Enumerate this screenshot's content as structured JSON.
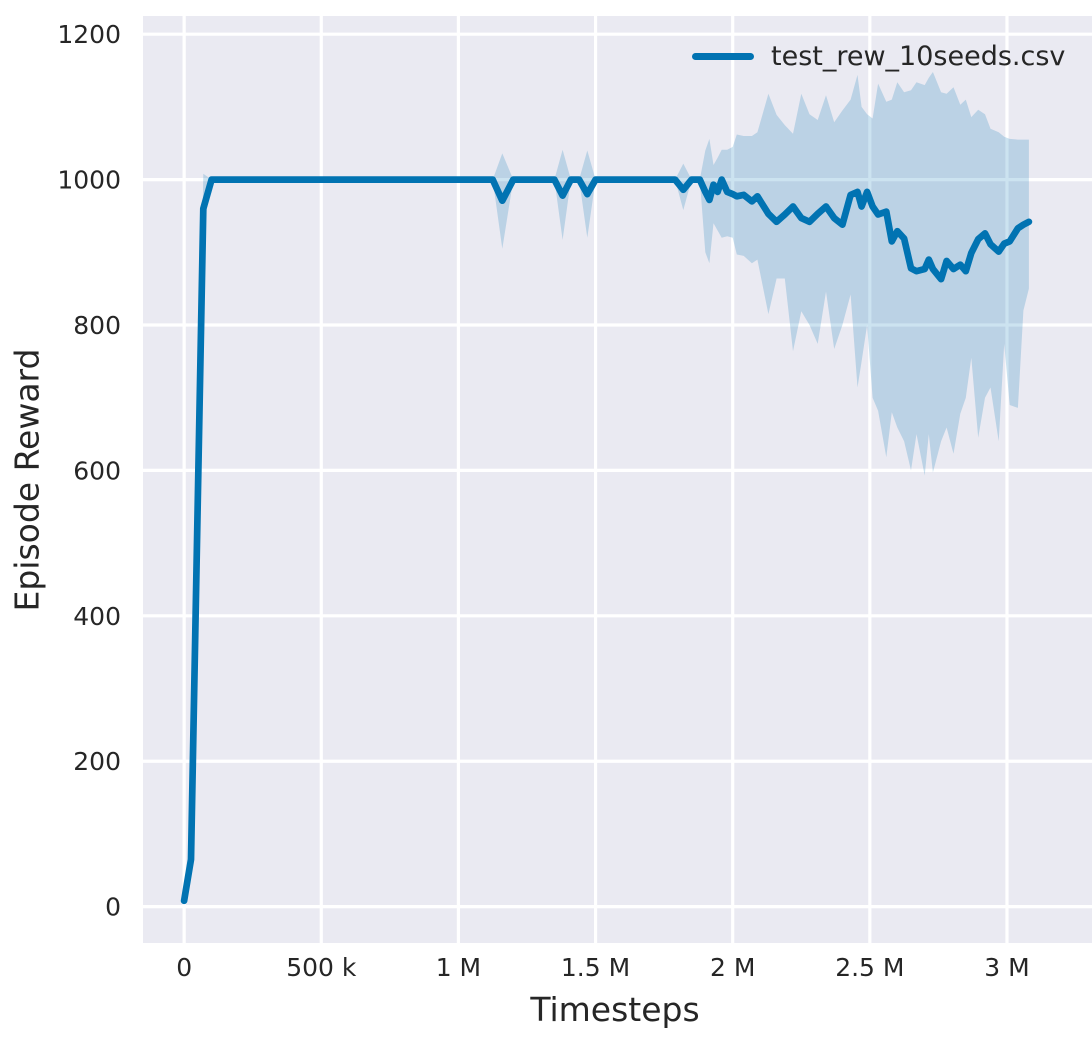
{
  "chart_data": {
    "type": "line",
    "title": "",
    "xlabel": "Timesteps",
    "ylabel": "Episode Reward",
    "legend_position": "upper right",
    "grid": true,
    "legend": [
      {
        "label": "test_rew_10seeds.csv",
        "color": "#0173b2"
      }
    ],
    "x_ticks": {
      "values": [
        0,
        500000,
        1000000,
        1500000,
        2000000,
        2500000,
        3000000
      ],
      "labels": [
        "0",
        "500 k",
        "1 M",
        "1.5 M",
        "2 M",
        "2.5 M",
        "3 M"
      ]
    },
    "y_ticks": {
      "values": [
        0,
        200,
        400,
        600,
        800,
        1000,
        1200
      ],
      "labels": [
        "0",
        "200",
        "400",
        "600",
        "800",
        "1000",
        "1200"
      ]
    },
    "xlim": [
      -150000,
      3310000
    ],
    "ylim": [
      -50,
      1225
    ],
    "styles": {
      "figure_background": "#ffffff",
      "plot_background": "#eaeaf2",
      "grid_color": "#ffffff",
      "line_color": "#0173b2",
      "band_color": "rgba(1,115,178,0.2)",
      "text_color": "#262626"
    },
    "series": [
      {
        "name": "test_rew_10seeds.csv",
        "x": [
          0,
          25000,
          70000,
          100000,
          150000,
          200000,
          300000,
          400000,
          500000,
          600000,
          700000,
          800000,
          900000,
          1000000,
          1100000,
          1125000,
          1160000,
          1200000,
          1250000,
          1300000,
          1350000,
          1380000,
          1410000,
          1440000,
          1470000,
          1500000,
          1600000,
          1700000,
          1790000,
          1820000,
          1850000,
          1880000,
          1900000,
          1915000,
          1930000,
          1945000,
          1960000,
          1980000,
          2000000,
          2015000,
          2040000,
          2070000,
          2090000,
          2130000,
          2160000,
          2190000,
          2220000,
          2250000,
          2280000,
          2310000,
          2340000,
          2370000,
          2400000,
          2430000,
          2455000,
          2470000,
          2490000,
          2510000,
          2530000,
          2560000,
          2580000,
          2600000,
          2625000,
          2650000,
          2670000,
          2700000,
          2715000,
          2730000,
          2760000,
          2780000,
          2805000,
          2830000,
          2850000,
          2870000,
          2895000,
          2920000,
          2940000,
          2970000,
          2990000,
          3010000,
          3040000,
          3060000,
          3080000
        ],
        "mean": [
          8,
          65,
          960,
          1000,
          1000,
          1000,
          1000,
          1000,
          1000,
          1000,
          1000,
          1000,
          1000,
          1000,
          1000,
          1000,
          971,
          1000,
          1000,
          1000,
          1000,
          978,
          1000,
          1000,
          980,
          1000,
          1000,
          1000,
          1000,
          986,
          1000,
          1000,
          983,
          972,
          993,
          983,
          1000,
          983,
          980,
          977,
          979,
          970,
          977,
          953,
          942,
          952,
          963,
          947,
          942,
          953,
          963,
          947,
          938,
          979,
          983,
          963,
          983,
          963,
          952,
          956,
          915,
          929,
          919,
          878,
          874,
          877,
          890,
          877,
          863,
          888,
          877,
          883,
          874,
          899,
          918,
          926,
          911,
          901,
          912,
          915,
          933,
          938,
          942
        ],
        "band_low": [
          8,
          65,
          930,
          1000,
          1000,
          1000,
          1000,
          1000,
          1000,
          1000,
          1000,
          1000,
          1000,
          1000,
          1000,
          1000,
          905,
          1000,
          1000,
          1000,
          1000,
          917,
          1000,
          1000,
          920,
          1000,
          1000,
          1000,
          1000,
          958,
          1000,
          1000,
          900,
          885,
          940,
          930,
          920,
          922,
          920,
          897,
          895,
          885,
          890,
          815,
          864,
          864,
          764,
          819,
          800,
          774,
          846,
          767,
          800,
          842,
          714,
          750,
          800,
          700,
          682,
          618,
          680,
          659,
          640,
          600,
          650,
          593,
          650,
          597,
          640,
          659,
          623,
          678,
          700,
          755,
          645,
          700,
          714,
          640,
          774,
          690,
          686,
          820,
          850
        ],
        "band_high": [
          8,
          65,
          1008,
          1000,
          1000,
          1000,
          1000,
          1000,
          1000,
          1000,
          1000,
          1000,
          1000,
          1000,
          1000,
          1000,
          1036,
          1000,
          1000,
          1000,
          1000,
          1041,
          1000,
          1000,
          1040,
          1000,
          1000,
          1000,
          1000,
          1022,
          1000,
          1000,
          1040,
          1056,
          1020,
          1030,
          1041,
          1041,
          1045,
          1062,
          1060,
          1060,
          1065,
          1118,
          1089,
          1075,
          1063,
          1118,
          1090,
          1082,
          1116,
          1079,
          1095,
          1110,
          1144,
          1100,
          1090,
          1084,
          1132,
          1107,
          1110,
          1134,
          1120,
          1123,
          1134,
          1130,
          1140,
          1148,
          1120,
          1118,
          1127,
          1103,
          1110,
          1086,
          1096,
          1090,
          1070,
          1065,
          1059,
          1056,
          1055,
          1055,
          1055
        ]
      }
    ]
  }
}
